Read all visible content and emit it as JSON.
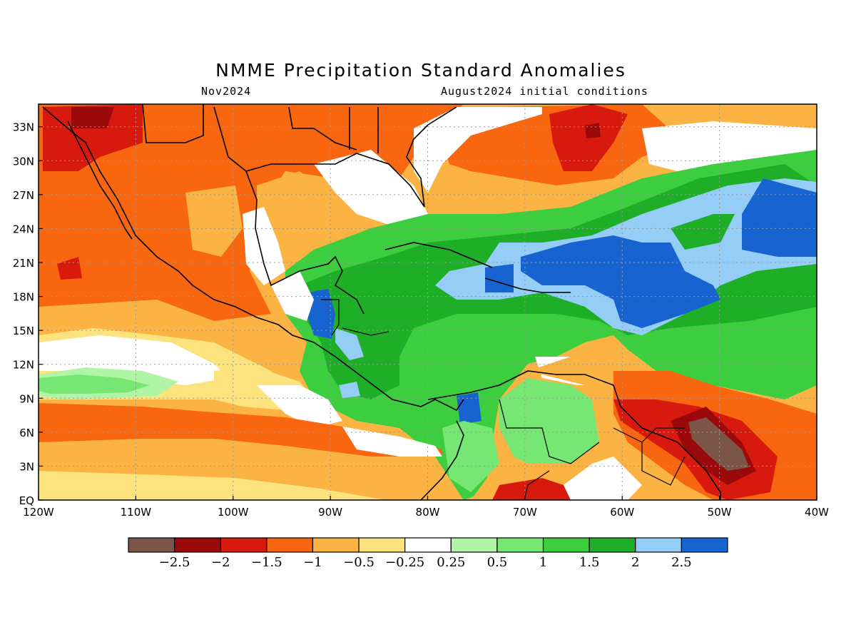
{
  "title": "NMME Precipitation Standard Anomalies",
  "subtitle_left": "Nov2024",
  "subtitle_right": "August2024 initial conditions",
  "map": {
    "lon_range": [
      -120,
      -40
    ],
    "lat_range": [
      0,
      35
    ],
    "lon_ticks": [
      {
        "value": -120,
        "label": "120W"
      },
      {
        "value": -110,
        "label": "110W"
      },
      {
        "value": -100,
        "label": "100W"
      },
      {
        "value": -90,
        "label": "90W"
      },
      {
        "value": -80,
        "label": "80W"
      },
      {
        "value": -70,
        "label": "70W"
      },
      {
        "value": -60,
        "label": "60W"
      },
      {
        "value": -50,
        "label": "50W"
      },
      {
        "value": -40,
        "label": "40W"
      }
    ],
    "lat_ticks": [
      {
        "value": 0,
        "label": "EQ"
      },
      {
        "value": 3,
        "label": "3N"
      },
      {
        "value": 6,
        "label": "6N"
      },
      {
        "value": 9,
        "label": "9N"
      },
      {
        "value": 12,
        "label": "12N"
      },
      {
        "value": 15,
        "label": "15N"
      },
      {
        "value": 18,
        "label": "18N"
      },
      {
        "value": 21,
        "label": "21N"
      },
      {
        "value": 24,
        "label": "24N"
      },
      {
        "value": 27,
        "label": "27N"
      },
      {
        "value": 30,
        "label": "30N"
      },
      {
        "value": 33,
        "label": "33N"
      }
    ],
    "grid": "dotted"
  },
  "colorbar": {
    "colors": [
      "#7a5548",
      "#9b0a0a",
      "#d81a0e",
      "#f8660f",
      "#fbb444",
      "#fde37e",
      "#ffffff",
      "#b0f5a5",
      "#76e772",
      "#3cce3e",
      "#1fae28",
      "#94cdf6",
      "#1764d0"
    ],
    "labels": [
      "-2.5",
      "-2",
      "-1.5",
      "-1",
      "-0.5",
      "-0.25",
      "0.25",
      "0.5",
      "1",
      "1.5",
      "2",
      "2.5"
    ]
  }
}
